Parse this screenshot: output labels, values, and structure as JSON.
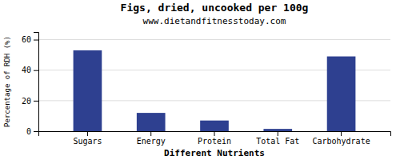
{
  "chart_data": {
    "type": "bar",
    "title": "Figs, dried, uncooked per 100g",
    "subtitle": "www.dietandfitnesstoday.com",
    "xlabel": "Different Nutrients",
    "ylabel": "Percentage of RDH (%)",
    "categories": [
      "Sugars",
      "Energy",
      "Protein",
      "Total Fat",
      "Carbohydrate"
    ],
    "values": [
      53,
      12,
      7,
      1.5,
      49
    ],
    "color": "#2e4090",
    "ylim": [
      0,
      65
    ],
    "yticks": [
      0,
      20,
      40,
      60
    ],
    "grid": true
  }
}
